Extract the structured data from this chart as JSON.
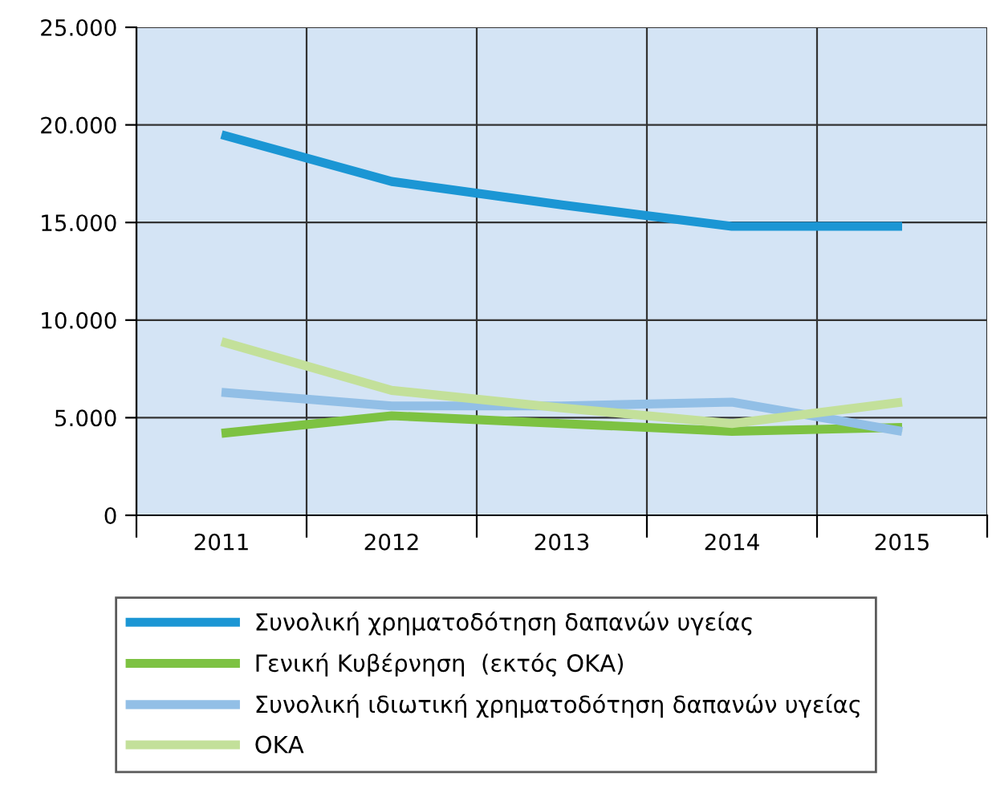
{
  "chart_data": {
    "type": "line",
    "categories": [
      "2011",
      "2012",
      "2013",
      "2014",
      "2015"
    ],
    "series": [
      {
        "name": "Συνολική χρηματοδότηση δαπανών υγείας",
        "color": "#1b96d4",
        "values": [
          19500,
          17100,
          15900,
          14800,
          14800
        ]
      },
      {
        "name": "Γενική Κυβέρνηση  (εκτός ΟΚΑ)",
        "color": "#7dc242",
        "values": [
          4200,
          5100,
          4700,
          4300,
          4500
        ]
      },
      {
        "name": "Συνολική ιδιωτική χρηματοδότηση δαπανών υγείας",
        "color": "#92bfe6",
        "values": [
          6300,
          5600,
          5600,
          5800,
          4300
        ]
      },
      {
        "name": "ΟΚΑ",
        "color": "#c3e09a",
        "values": [
          8900,
          6400,
          5500,
          4700,
          5800
        ]
      }
    ],
    "ylim": [
      0,
      25000
    ],
    "yticks": [
      {
        "value": 0,
        "label": "0"
      },
      {
        "value": 5000,
        "label": "5.000"
      },
      {
        "value": 10000,
        "label": "10.000"
      },
      {
        "value": 15000,
        "label": "15.000"
      },
      {
        "value": 20000,
        "label": "20.000"
      },
      {
        "value": 25000,
        "label": "25.000"
      }
    ],
    "grid": true,
    "legend": "bottom",
    "marker": "none",
    "line_style": "solid"
  }
}
